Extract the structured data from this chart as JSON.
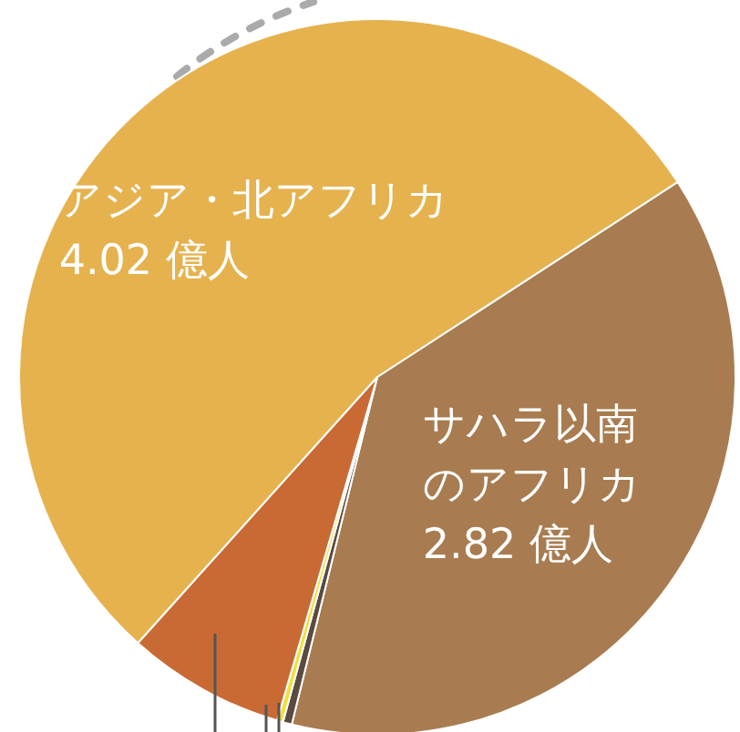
{
  "chart_data": {
    "type": "pie",
    "categories": [
      "サハラ以南のアフリカ",
      null,
      null,
      null,
      "アジア・北アフリカ"
    ],
    "values": [
      2.82,
      0.03,
      0.02,
      0.53,
      4.02
    ],
    "value_labels": [
      "2.82 億人",
      null,
      null,
      null,
      "4.02 億人"
    ],
    "colors": [
      "#a87c50",
      "#5a4a40",
      "#f0e040",
      "#c96a35",
      "#e5b24e"
    ],
    "legend": false
  }
}
